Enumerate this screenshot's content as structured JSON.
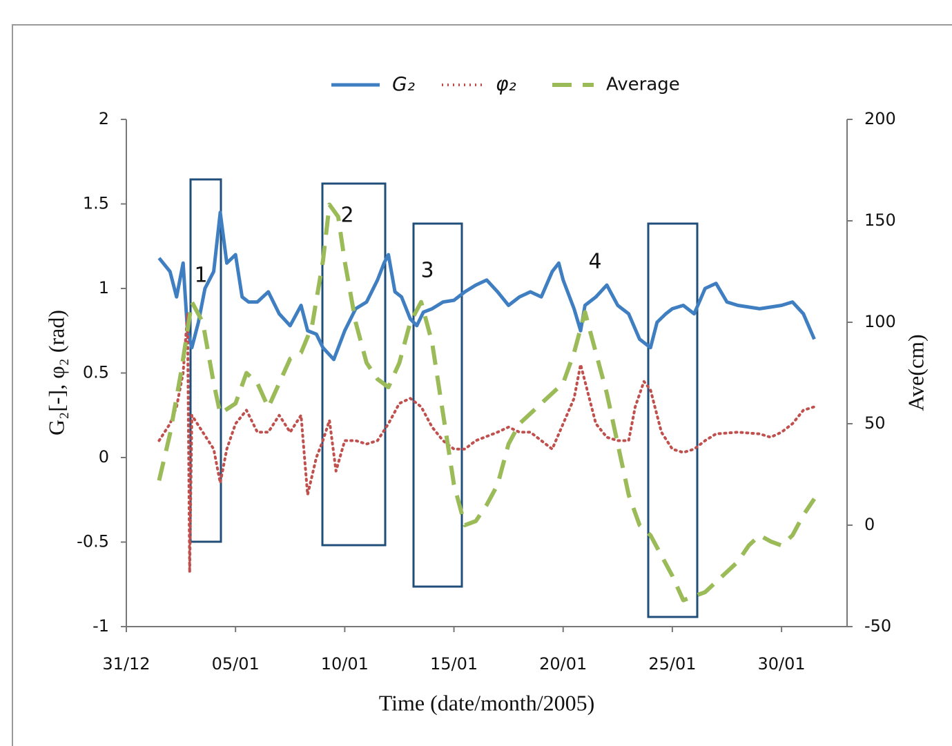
{
  "chart_data": {
    "type": "line",
    "xlabel": "Time (date/month/2005)",
    "ylabel": "G₂[-], φ₂ (rad)",
    "y2label": "Ave(cm)",
    "xlim": [
      0,
      33
    ],
    "xticks": [
      {
        "value": 0,
        "label": "31/12"
      },
      {
        "value": 5,
        "label": "05/01"
      },
      {
        "value": 10,
        "label": "10/01"
      },
      {
        "value": 15,
        "label": "15/01"
      },
      {
        "value": 20,
        "label": "20/01"
      },
      {
        "value": 25,
        "label": "25/01"
      },
      {
        "value": 30,
        "label": "30/01"
      }
    ],
    "ylim": [
      -1,
      2
    ],
    "yticks": [
      -1,
      -0.5,
      0,
      0.5,
      1,
      1.5,
      2
    ],
    "y2lim": [
      -50,
      200
    ],
    "y2ticks": [
      -50,
      0,
      50,
      100,
      150,
      200
    ],
    "legend": "top",
    "annotations": [
      "1",
      "2",
      "3",
      "4"
    ],
    "series": [
      {
        "name": "G₂",
        "color": "#3f7fc1",
        "style": "solid",
        "x": [
          1.5,
          2.0,
          2.3,
          2.6,
          2.8,
          3.0,
          3.3,
          3.6,
          4.0,
          4.3,
          4.6,
          5.0,
          5.3,
          5.6,
          6.0,
          6.5,
          7.0,
          7.5,
          8.0,
          8.3,
          8.7,
          9.0,
          9.5,
          10.0,
          10.5,
          11.0,
          11.5,
          11.8,
          12.0,
          12.3,
          12.6,
          13.0,
          13.3,
          13.6,
          14.0,
          14.5,
          15.0,
          15.5,
          16.0,
          16.5,
          17.0,
          17.5,
          18.0,
          18.5,
          19.0,
          19.5,
          19.8,
          20.0,
          20.5,
          20.8,
          21.0,
          21.5,
          22.0,
          22.5,
          23.0,
          23.5,
          24.0,
          24.3,
          24.7,
          25.0,
          25.5,
          26.0,
          26.5,
          27.0,
          27.5,
          28.0,
          29.0,
          30.0,
          30.5,
          31.0,
          31.5
        ],
        "values": [
          1.18,
          1.1,
          0.95,
          1.15,
          0.75,
          0.65,
          0.8,
          1.0,
          1.1,
          1.45,
          1.15,
          1.2,
          0.95,
          0.92,
          0.92,
          0.98,
          0.85,
          0.78,
          0.9,
          0.75,
          0.73,
          0.65,
          0.58,
          0.75,
          0.88,
          0.92,
          1.05,
          1.15,
          1.2,
          0.98,
          0.95,
          0.82,
          0.78,
          0.86,
          0.88,
          0.92,
          0.93,
          0.98,
          1.02,
          1.05,
          0.98,
          0.9,
          0.95,
          0.98,
          0.95,
          1.1,
          1.15,
          1.05,
          0.88,
          0.75,
          0.9,
          0.95,
          1.02,
          0.9,
          0.85,
          0.7,
          0.65,
          0.8,
          0.85,
          0.88,
          0.9,
          0.85,
          1.0,
          1.03,
          0.92,
          0.9,
          0.88,
          0.9,
          0.92,
          0.85,
          0.7
        ]
      },
      {
        "name": "φ₂",
        "color": "#c0504d",
        "style": "dotted",
        "x": [
          1.5,
          2.0,
          2.3,
          2.6,
          2.8,
          2.9,
          3.0,
          3.5,
          4.0,
          4.3,
          4.6,
          5.0,
          5.5,
          6.0,
          6.5,
          7.0,
          7.5,
          8.0,
          8.3,
          8.7,
          9.0,
          9.3,
          9.6,
          10.0,
          10.5,
          11.0,
          11.5,
          12.0,
          12.5,
          13.0,
          13.5,
          14.0,
          14.5,
          15.0,
          15.5,
          16.0,
          17.0,
          17.5,
          18.0,
          18.5,
          19.0,
          19.5,
          20.0,
          20.5,
          20.8,
          21.0,
          21.5,
          22.0,
          22.5,
          23.0,
          23.3,
          23.7,
          24.0,
          24.5,
          25.0,
          25.5,
          26.0,
          26.5,
          27.0,
          28.0,
          29.0,
          29.5,
          30.0,
          30.5,
          31.0,
          31.5
        ],
        "values": [
          0.1,
          0.2,
          0.3,
          0.5,
          0.85,
          -0.68,
          0.25,
          0.15,
          0.05,
          -0.15,
          0.05,
          0.2,
          0.28,
          0.15,
          0.15,
          0.25,
          0.15,
          0.25,
          -0.22,
          0.0,
          0.1,
          0.22,
          -0.08,
          0.1,
          0.1,
          0.08,
          0.1,
          0.2,
          0.32,
          0.35,
          0.3,
          0.18,
          0.1,
          0.05,
          0.05,
          0.1,
          0.15,
          0.18,
          0.15,
          0.15,
          0.1,
          0.05,
          0.2,
          0.35,
          0.55,
          0.45,
          0.2,
          0.12,
          0.1,
          0.1,
          0.3,
          0.45,
          0.4,
          0.15,
          0.05,
          0.03,
          0.05,
          0.1,
          0.14,
          0.15,
          0.14,
          0.12,
          0.15,
          0.2,
          0.28,
          0.3
        ]
      },
      {
        "name": "Average",
        "color": "#9bbb59",
        "style": "dashed",
        "axis": "y2",
        "x": [
          1.5,
          2.0,
          2.5,
          3.0,
          3.5,
          4.0,
          4.3,
          5.0,
          5.5,
          6.0,
          6.5,
          7.0,
          7.5,
          8.0,
          8.5,
          9.0,
          9.3,
          9.7,
          10.0,
          10.5,
          11.0,
          11.5,
          12.0,
          12.5,
          13.0,
          13.5,
          14.0,
          14.5,
          15.0,
          15.5,
          16.0,
          16.5,
          17.0,
          17.5,
          18.0,
          18.5,
          19.0,
          19.5,
          20.0,
          20.5,
          21.0,
          21.5,
          22.0,
          22.5,
          23.0,
          23.5,
          24.0,
          24.5,
          25.0,
          25.5,
          26.0,
          26.5,
          27.0,
          28.0,
          28.5,
          29.0,
          29.5,
          30.0,
          30.5,
          31.0,
          31.5
        ],
        "values": [
          22,
          45,
          75,
          110,
          100,
          70,
          55,
          60,
          75,
          70,
          58,
          70,
          82,
          85,
          98,
          130,
          158,
          152,
          130,
          100,
          80,
          72,
          68,
          80,
          100,
          110,
          90,
          55,
          20,
          0,
          2,
          10,
          20,
          40,
          50,
          55,
          60,
          65,
          70,
          85,
          105,
          85,
          65,
          40,
          15,
          0,
          -5,
          -15,
          -25,
          -37,
          -35,
          -33,
          -28,
          -18,
          -10,
          -5,
          -8,
          -10,
          -5,
          5,
          13
        ]
      }
    ]
  }
}
